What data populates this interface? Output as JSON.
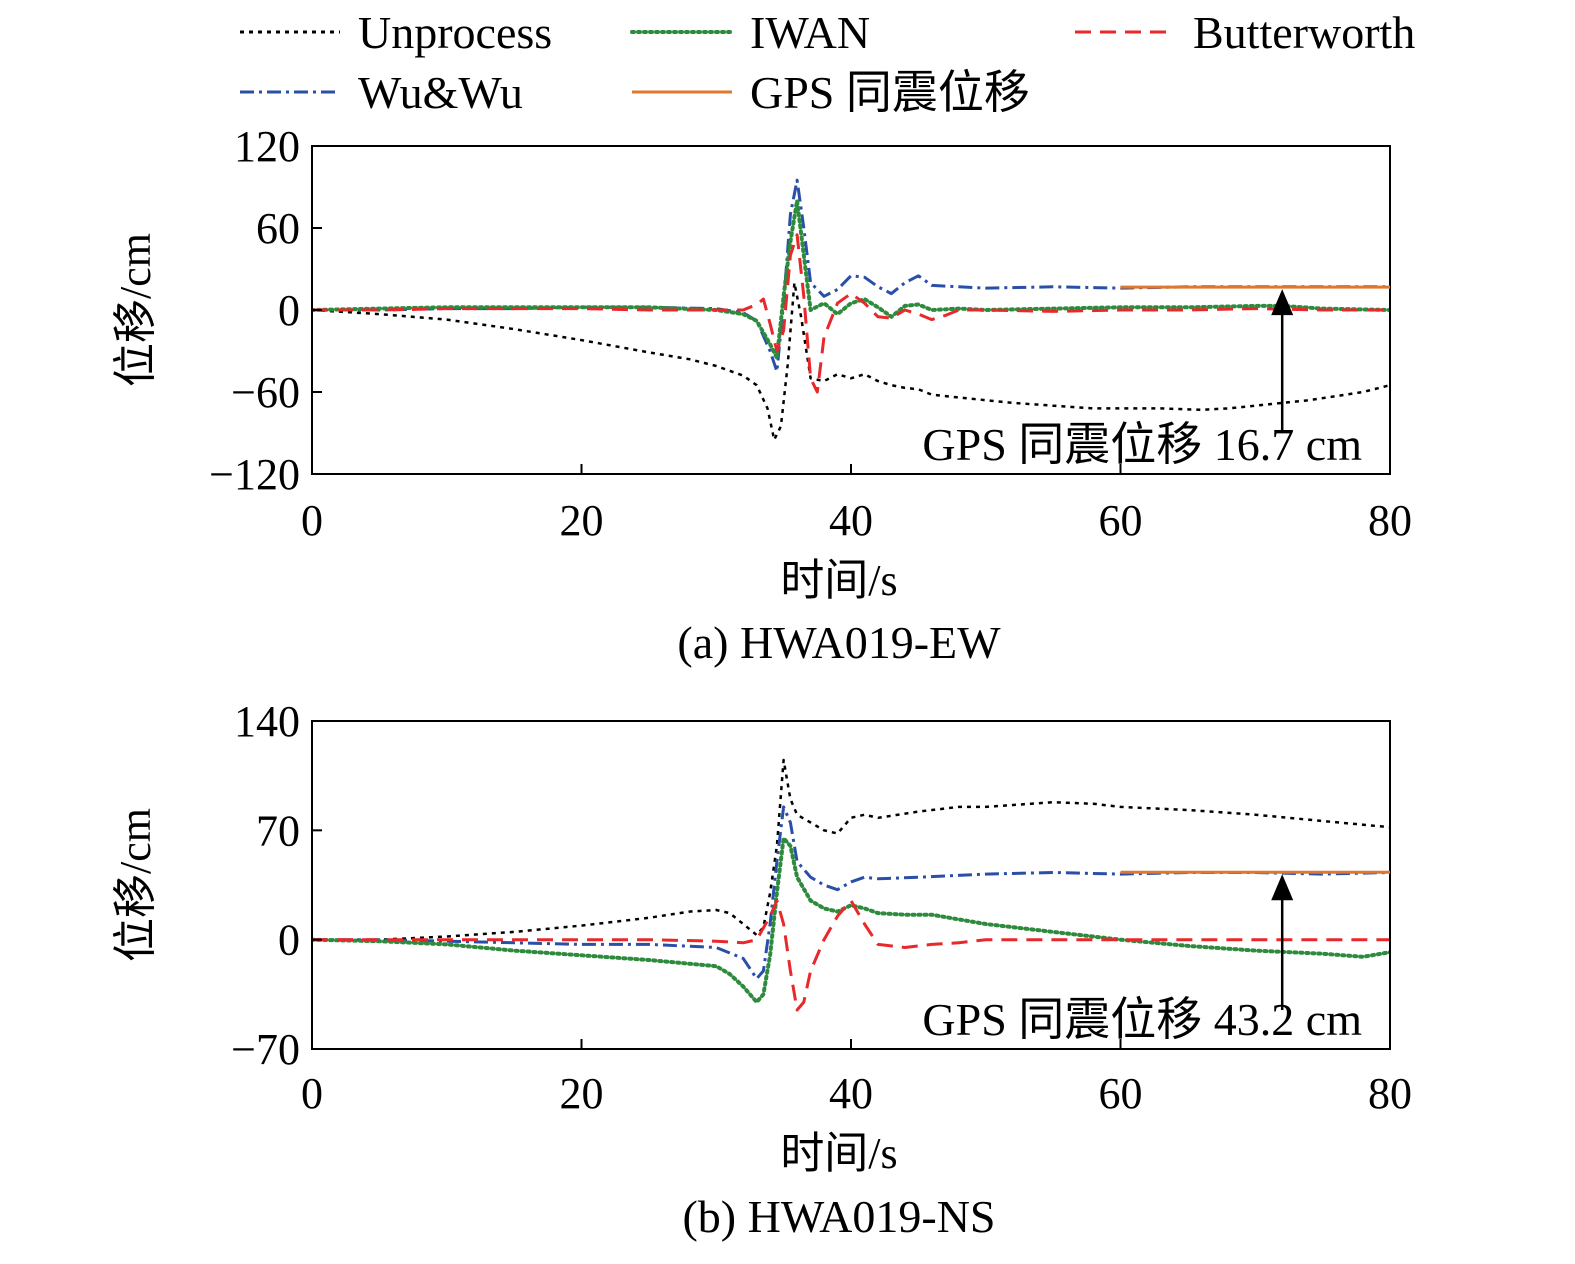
{
  "legend": [
    {
      "name": "Unprocess",
      "color": "#000000",
      "dash": "4 5"
    },
    {
      "name": "IWAN",
      "color": "#2e8b3e",
      "dash": "2 4"
    },
    {
      "name": "Butterworth",
      "color": "#e8282b",
      "dash": "16 9"
    },
    {
      "name": "Wu&Wu",
      "color": "#2a4fa8",
      "dash": "14 5 3 5"
    },
    {
      "name": "GPS 同震位移",
      "color": "#e0772f",
      "dash": ""
    }
  ],
  "chart_data": [
    {
      "type": "line",
      "caption": "(a) HWA019-EW",
      "xlabel": "时间/s",
      "ylabel": "位移/cm",
      "xlim": [
        0,
        80
      ],
      "ylim": [
        -120,
        120
      ],
      "xticks": [
        "0",
        "20",
        "40",
        "60",
        "80"
      ],
      "yticks": [
        "120",
        "60",
        "0",
        "−60",
        "−120"
      ],
      "annotation": {
        "text": "GPS 同震位移 16.7 cm",
        "x": 72,
        "y_from": -90,
        "y_to": 16.7
      },
      "gps": {
        "x": [
          60,
          80
        ],
        "y": 16.7
      },
      "series": [
        {
          "name": "Unprocess",
          "x": [
            0,
            5,
            10,
            15,
            20,
            25,
            28,
            30,
            32,
            33,
            33.8,
            34.3,
            34.8,
            35.3,
            35.8,
            36.3,
            37,
            38,
            39,
            40,
            41,
            42,
            43,
            44,
            45,
            46,
            48,
            50,
            52,
            55,
            58,
            60,
            63,
            66,
            68,
            70,
            72,
            74,
            76,
            78,
            80
          ],
          "y": [
            0,
            -3,
            -7,
            -14,
            -22,
            -31,
            -36,
            -41,
            -48,
            -55,
            -72,
            -95,
            -85,
            -40,
            20,
            -5,
            -50,
            -52,
            -47,
            -50,
            -47,
            -52,
            -55,
            -57,
            -58,
            -62,
            -64,
            -66,
            -68,
            -70,
            -72,
            -72,
            -72,
            -73,
            -72,
            -70,
            -68,
            -66,
            -63,
            -60,
            -55
          ]
        },
        {
          "name": "IWAN",
          "x": [
            0,
            5,
            10,
            15,
            20,
            25,
            30,
            32,
            33,
            34,
            34.5,
            35,
            35.5,
            36,
            36.5,
            37,
            38,
            39,
            40,
            41,
            42,
            43,
            44,
            45,
            46,
            48,
            50,
            55,
            60,
            65,
            70,
            72,
            75,
            80
          ],
          "y": [
            0,
            1,
            2,
            2,
            2,
            2,
            0,
            -3,
            -8,
            -25,
            -35,
            10,
            50,
            80,
            40,
            0,
            5,
            -3,
            5,
            8,
            2,
            -5,
            3,
            4,
            0,
            1,
            0,
            1,
            2,
            2,
            3,
            3,
            1,
            0
          ]
        },
        {
          "name": "Butterworth",
          "x": [
            0,
            5,
            10,
            15,
            20,
            25,
            30,
            32,
            33,
            33.5,
            34,
            34.5,
            35,
            35.5,
            36,
            36.5,
            37,
            37.5,
            38,
            39,
            40,
            41,
            42,
            43,
            44,
            45,
            46,
            47,
            48,
            50,
            55,
            60,
            65,
            70,
            75,
            80
          ],
          "y": [
            0,
            0,
            1,
            1,
            1,
            0,
            0,
            0,
            4,
            8,
            -10,
            -30,
            -15,
            40,
            55,
            10,
            -50,
            -60,
            -20,
            5,
            12,
            5,
            -5,
            -6,
            0,
            -3,
            -7,
            -4,
            0,
            0,
            -1,
            0,
            0,
            1,
            0,
            0
          ]
        },
        {
          "name": "Wu&Wu",
          "x": [
            0,
            5,
            10,
            15,
            20,
            25,
            30,
            32,
            33,
            34,
            34.5,
            35,
            35.5,
            36,
            36.5,
            37,
            38,
            39,
            40,
            41,
            42,
            43,
            44,
            45,
            46,
            48,
            50,
            55,
            60,
            65,
            70,
            75,
            80
          ],
          "y": [
            0,
            0,
            1,
            1,
            2,
            2,
            1,
            -2,
            -8,
            -30,
            -45,
            5,
            70,
            95,
            60,
            20,
            10,
            15,
            25,
            24,
            17,
            12,
            20,
            25,
            18,
            17,
            16,
            17,
            16,
            17,
            17,
            17,
            17
          ]
        }
      ]
    },
    {
      "type": "line",
      "caption": "(b) HWA019-NS",
      "xlabel": "时间/s",
      "ylabel": "位移/cm",
      "xlim": [
        0,
        80
      ],
      "ylim": [
        -70,
        140
      ],
      "xticks": [
        "0",
        "20",
        "40",
        "60",
        "80"
      ],
      "yticks": [
        "140",
        "70",
        "0",
        "−70"
      ],
      "annotation": {
        "text": "GPS 同震位移 43.2 cm",
        "x": 72,
        "y_from": -45,
        "y_to": 43.2
      },
      "gps": {
        "x": [
          60,
          80
        ],
        "y": 43.2
      },
      "series": [
        {
          "name": "Unprocess",
          "x": [
            0,
            5,
            10,
            15,
            20,
            25,
            28,
            30,
            31,
            32,
            33,
            33.5,
            34,
            34.5,
            35,
            35.5,
            36,
            37,
            38,
            39,
            40,
            41,
            42,
            45,
            48,
            50,
            55,
            58,
            60,
            65,
            70,
            75,
            80
          ],
          "y": [
            0,
            0,
            2,
            5,
            9,
            14,
            18,
            19,
            17,
            10,
            3,
            8,
            30,
            60,
            115,
            90,
            80,
            75,
            70,
            68,
            78,
            80,
            78,
            82,
            85,
            85,
            88,
            87,
            85,
            83,
            80,
            76,
            72
          ]
        },
        {
          "name": "IWAN",
          "x": [
            0,
            5,
            10,
            15,
            20,
            25,
            30,
            31,
            32,
            33,
            33.5,
            34,
            34.5,
            35,
            35.5,
            36,
            37,
            38,
            39,
            40,
            41,
            42,
            44,
            46,
            48,
            50,
            55,
            60,
            65,
            70,
            75,
            78,
            80
          ],
          "y": [
            0,
            -1,
            -3,
            -7,
            -10,
            -13,
            -17,
            -22,
            -30,
            -40,
            -35,
            -10,
            30,
            65,
            60,
            40,
            25,
            20,
            18,
            22,
            20,
            17,
            16,
            16,
            13,
            10,
            5,
            0,
            -4,
            -7,
            -9,
            -11,
            -8
          ]
        },
        {
          "name": "Butterworth",
          "x": [
            0,
            5,
            10,
            15,
            20,
            25,
            30,
            32,
            33,
            34,
            34.5,
            35,
            35.5,
            36,
            36.5,
            37,
            38,
            39,
            40,
            41,
            42,
            44,
            46,
            48,
            50,
            55,
            60,
            65,
            70,
            75,
            80
          ],
          "y": [
            0,
            0,
            0,
            0,
            0,
            0,
            -1,
            -2,
            0,
            15,
            25,
            10,
            -20,
            -45,
            -40,
            -20,
            0,
            15,
            25,
            10,
            -3,
            -5,
            -3,
            -2,
            0,
            0,
            0,
            0,
            0,
            0,
            0
          ]
        },
        {
          "name": "Wu&Wu",
          "x": [
            0,
            5,
            10,
            15,
            20,
            25,
            30,
            32,
            33,
            33.5,
            34,
            34.5,
            35,
            35.5,
            36,
            37,
            38,
            39,
            40,
            41,
            42,
            45,
            50,
            55,
            60,
            65,
            70,
            75,
            80
          ],
          "y": [
            0,
            0,
            -1,
            -2,
            -3,
            -3,
            -5,
            -12,
            -25,
            -20,
            10,
            50,
            85,
            75,
            50,
            40,
            35,
            32,
            37,
            40,
            39,
            40,
            42,
            43,
            42,
            43,
            43,
            42,
            43
          ]
        }
      ]
    }
  ]
}
